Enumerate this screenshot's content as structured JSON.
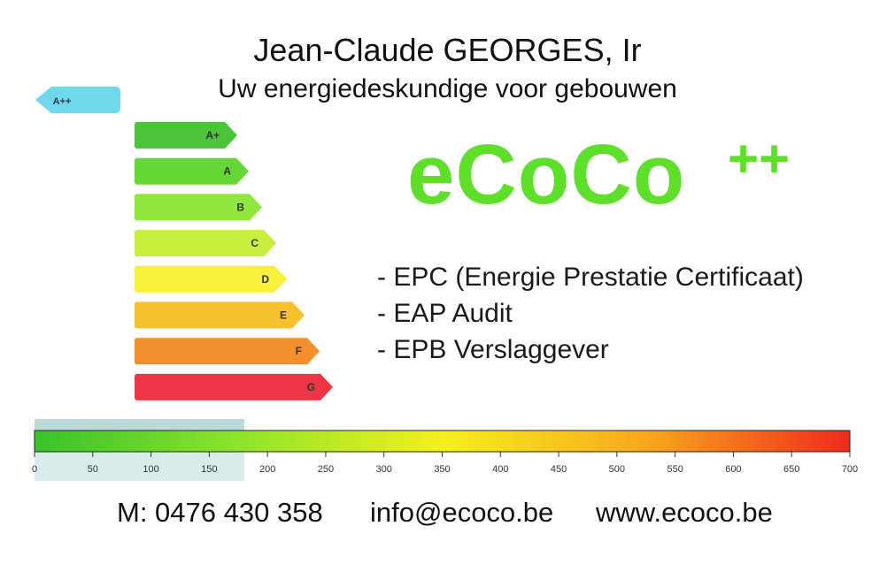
{
  "header": {
    "name": "Jean-Claude GEORGES, Ir",
    "subtitle": "Uw energiedeskundige voor gebouwen"
  },
  "brand": {
    "name": "eCoCo",
    "superscript": "++",
    "color": "#5ee02a"
  },
  "services": [
    "- EPC (Energie Prestatie Certificaat)",
    "- EAP Audit",
    "- EPB Verslaggever"
  ],
  "energy_labels": {
    "top_label": {
      "label": "A++",
      "color": "#6fd8ea"
    },
    "classes": [
      {
        "label": "A+",
        "color": "#4cc43a"
      },
      {
        "label": "A",
        "color": "#66d836"
      },
      {
        "label": "B",
        "color": "#8fe63c"
      },
      {
        "label": "C",
        "color": "#c9ef3e"
      },
      {
        "label": "D",
        "color": "#f6f03a"
      },
      {
        "label": "E",
        "color": "#f5c12e"
      },
      {
        "label": "F",
        "color": "#f1902c"
      },
      {
        "label": "G",
        "color": "#ee3545"
      }
    ]
  },
  "scale": {
    "ticks": [
      0,
      50,
      100,
      150,
      200,
      250,
      300,
      350,
      400,
      450,
      500,
      550,
      600,
      650,
      700
    ],
    "highlight_max": 180,
    "gradient": [
      "#3ac22a",
      "#8de42a",
      "#f4f01c",
      "#f9a81c",
      "#f02a1c"
    ]
  },
  "contact": {
    "phone": "M: 0476 430 358",
    "email": "info@ecoco.be",
    "website": "www.ecoco.be"
  }
}
